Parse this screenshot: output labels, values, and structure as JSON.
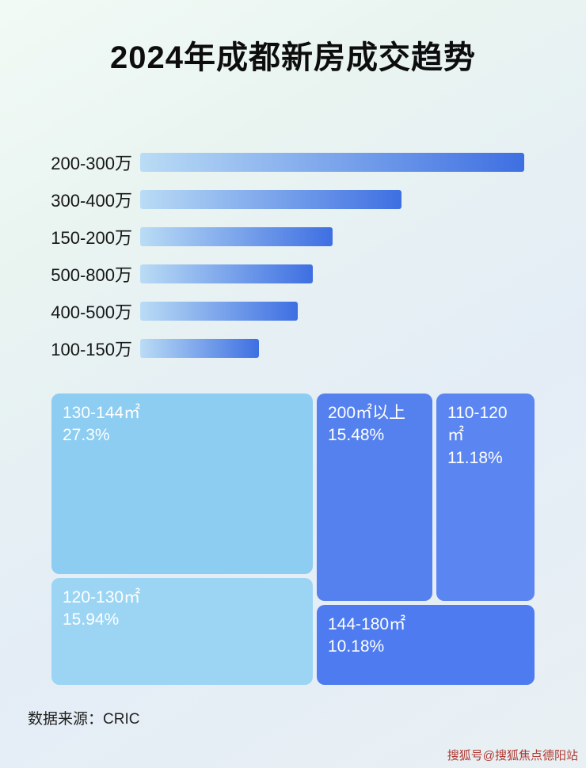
{
  "page": {
    "title": "2024年成都新房成交趋势",
    "source_label": "数据来源：CRIC",
    "watermark": "搜狐号@搜狐焦点德阳站"
  },
  "colors": {
    "bar_gradient_start": "#badcf5",
    "bar_gradient_end": "#3e6fe2",
    "treemap_light_blue_1": "#8ccdf1",
    "treemap_light_blue_2": "#9cd5f4",
    "treemap_blue_1": "#5581ee",
    "treemap_blue_2": "#5b86f1",
    "treemap_blue_3": "#4e7cf0",
    "title_color": "#0d0d0d",
    "watermark_color": "#b03a30"
  },
  "chart_data": [
    {
      "type": "bar",
      "orientation": "horizontal",
      "title": "2024年成都新房成交趋势",
      "categories": [
        "200-300万",
        "300-400万",
        "150-200万",
        "500-800万",
        "400-500万",
        "100-150万"
      ],
      "values_pct_of_max": [
        100,
        68,
        50,
        45,
        41,
        31
      ],
      "xlabel": "",
      "ylabel": "",
      "axis_labels_shown": false,
      "legend_position": "none",
      "grid": false
    },
    {
      "type": "treemap",
      "items": [
        {
          "label": "130-144㎡",
          "value": "27.3%"
        },
        {
          "label": "200㎡以上",
          "value": "15.48%"
        },
        {
          "label": "110-120㎡",
          "value": "11.18%"
        },
        {
          "label": "120-130㎡",
          "value": "15.94%"
        },
        {
          "label": "144-180㎡",
          "value": "10.18%"
        }
      ]
    }
  ]
}
